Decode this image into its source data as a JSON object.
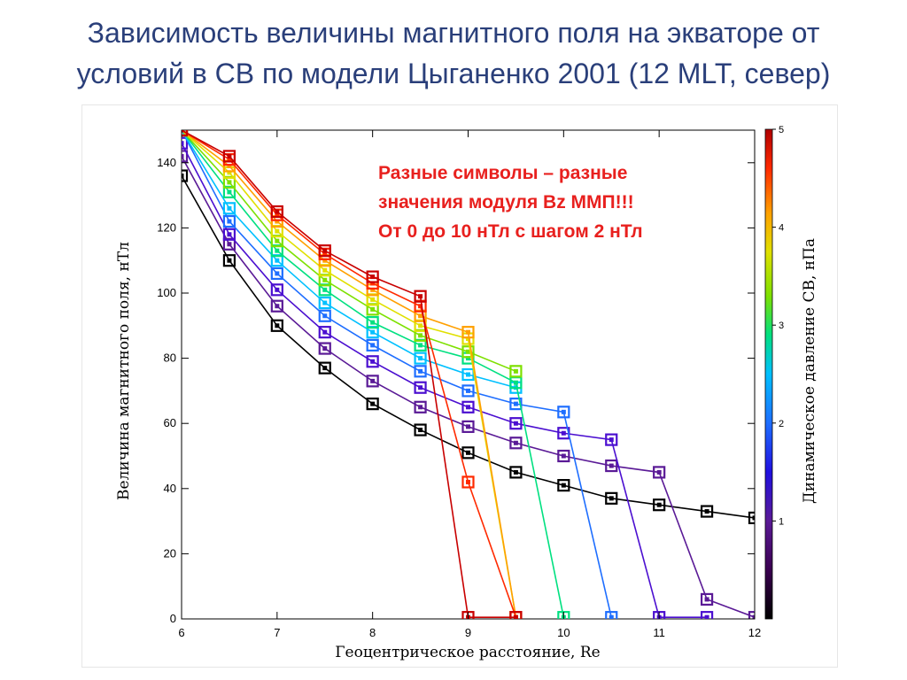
{
  "title_line1": "Зависимость величины магнитного поля на экваторе от",
  "title_line2": "условий в СВ по модели Цыганенко 2001 (12 MLT, север)",
  "chart_data": {
    "type": "line",
    "xlabel": "Геоцентрическое расстояние, Re",
    "ylabel": "Величина магнитного поля, нТл",
    "xlim": [
      6,
      12
    ],
    "ylim": [
      0,
      150
    ],
    "x_ticks": [
      "6",
      "7",
      "8",
      "9",
      "10",
      "11",
      "12"
    ],
    "y_ticks": [
      "0",
      "20",
      "40",
      "60",
      "80",
      "100",
      "120",
      "140"
    ],
    "colorbar": {
      "label": "Динамическое давление СВ, нПа",
      "range": [
        0,
        5
      ],
      "ticks": [
        "1",
        "2",
        "3",
        "4",
        "5"
      ]
    },
    "annotation": [
      "Разные символы – разные",
      "значения модуля Bz ММП!!!",
      "От 0 до 10 нТл с шагом 2 нТл"
    ],
    "marker_x": [
      6,
      6.5,
      7,
      7.5,
      8,
      8.5,
      9,
      9.5,
      10,
      10.5,
      11,
      11.5,
      12
    ],
    "series": [
      {
        "pressure": 0.3,
        "color": "#000000",
        "values": [
          136,
          110,
          90,
          77,
          66,
          58,
          51,
          45,
          41,
          37,
          35,
          33,
          31
        ]
      },
      {
        "pressure": 0.8,
        "color": "#5a1a96",
        "values": [
          142,
          115,
          96,
          83,
          73,
          65,
          59,
          54,
          50,
          47,
          45,
          6,
          0.5
        ]
      },
      {
        "pressure": 1.2,
        "color": "#4b0fd0",
        "values": [
          146,
          118,
          101,
          88,
          79,
          71,
          65,
          60,
          57,
          55,
          0.5,
          0.5,
          null
        ]
      },
      {
        "pressure": 1.8,
        "color": "#1e6eff",
        "values": [
          150,
          122,
          106,
          93,
          84,
          76,
          70,
          66,
          63.5,
          0.5,
          null,
          null,
          null
        ]
      },
      {
        "pressure": 2.2,
        "color": "#00c0ff",
        "values": [
          150,
          126,
          110,
          97,
          88,
          80,
          75,
          71,
          null,
          null,
          null,
          null,
          null
        ]
      },
      {
        "pressure": 2.6,
        "color": "#00e080",
        "values": [
          150,
          131,
          113,
          101,
          91,
          84,
          80,
          72.5,
          0.5,
          null,
          null,
          null,
          null
        ]
      },
      {
        "pressure": 3.0,
        "color": "#7ee000",
        "values": [
          150,
          134,
          116,
          104,
          95,
          87,
          82,
          76,
          null,
          null,
          null,
          null,
          null
        ]
      },
      {
        "pressure": 3.5,
        "color": "#e0e000",
        "values": [
          150,
          137,
          119,
          107,
          98,
          90,
          86,
          0.5,
          null,
          null,
          null,
          null,
          null
        ]
      },
      {
        "pressure": 3.9,
        "color": "#ffa000",
        "values": [
          150,
          139,
          122,
          110,
          101,
          93,
          88,
          0.5,
          null,
          null,
          null,
          null,
          null
        ]
      },
      {
        "pressure": 4.4,
        "color": "#ff2a00",
        "values": [
          150,
          141,
          124,
          112,
          103,
          96,
          42,
          0.5,
          null,
          null,
          null,
          null,
          null
        ]
      },
      {
        "pressure": 4.8,
        "color": "#c80000",
        "values": [
          150,
          142,
          125,
          113,
          105,
          99,
          0.5,
          0.5,
          null,
          null,
          null,
          null,
          null
        ]
      }
    ]
  }
}
